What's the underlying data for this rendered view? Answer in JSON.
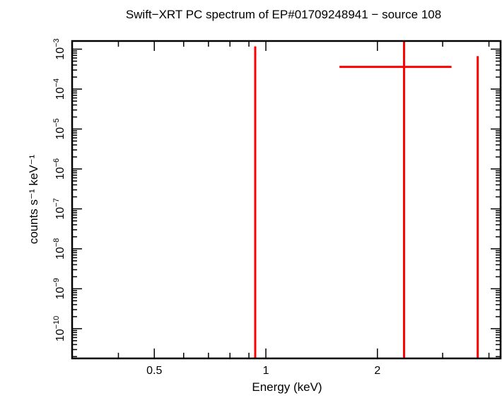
{
  "chart_data": {
    "type": "scatter",
    "title": "Swift−XRT PC spectrum of EP#01709248941 − source 108",
    "xlabel": "Energy (keV)",
    "ylabel": "counts s⁻¹ keV⁻¹",
    "x_scale": "log",
    "y_scale": "log",
    "xlim": [
      0.3,
      4.3
    ],
    "ylim": [
      1.8e-11,
      0.0016
    ],
    "x_ticks": [
      {
        "value": 0.5,
        "label": "0.5"
      },
      {
        "value": 1,
        "label": "1"
      },
      {
        "value": 2,
        "label": "2"
      }
    ],
    "y_ticks": [
      {
        "exp": -3,
        "label": "10",
        "sup": "−3"
      },
      {
        "exp": -4,
        "label": "10",
        "sup": "−4"
      },
      {
        "exp": -5,
        "label": "10",
        "sup": "−5"
      },
      {
        "exp": -6,
        "label": "10",
        "sup": "−6"
      },
      {
        "exp": -7,
        "label": "10",
        "sup": "−7"
      },
      {
        "exp": -8,
        "label": "10",
        "sup": "−8"
      },
      {
        "exp": -9,
        "label": "10",
        "sup": "−9"
      },
      {
        "exp": -10,
        "label": "10",
        "sup": "−10"
      }
    ],
    "grid": false,
    "series_color": "#ff0000",
    "points": [
      {
        "x": 0.936,
        "xlo": 0.936,
        "xhi": 0.936,
        "y": null,
        "ylo": 1.8e-11,
        "yhi": 0.00117
      },
      {
        "x": 2.36,
        "xlo": 1.58,
        "xhi": 3.17,
        "y": 0.00036,
        "ylo": 1.8e-11,
        "yhi": 0.0016
      },
      {
        "x": 3.73,
        "xlo": 3.73,
        "xhi": 3.73,
        "y": null,
        "ylo": 1.8e-11,
        "yhi": 0.00067
      }
    ]
  }
}
